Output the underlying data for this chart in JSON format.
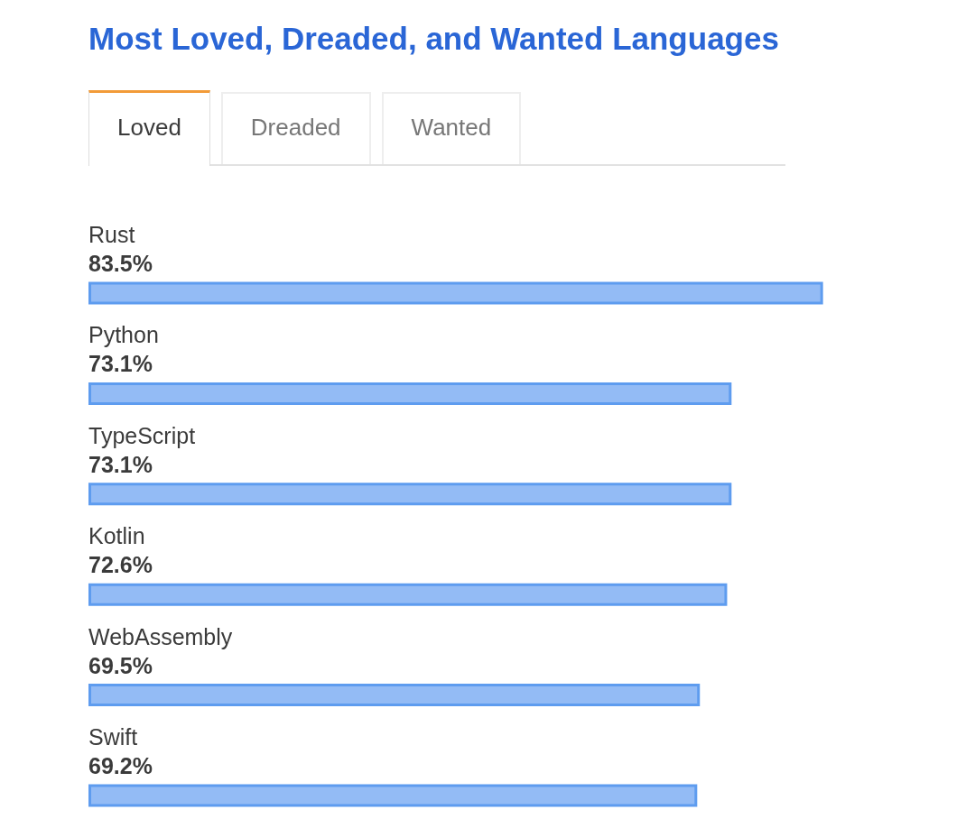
{
  "chart_data": {
    "type": "bar",
    "title": "Most Loved, Dreaded, and Wanted Languages",
    "annotations": [
      "Loved",
      "Dreaded",
      "Wanted"
    ],
    "categories": [
      "Rust",
      "Python",
      "TypeScript",
      "Kotlin",
      "WebAssembly",
      "Swift"
    ],
    "values": [
      83.5,
      73.1,
      73.1,
      72.6,
      69.5,
      69.2
    ],
    "value_labels": [
      "83.5%",
      "73.1%",
      "73.1%",
      "72.6%",
      "69.5%",
      "69.2%"
    ],
    "color": "#93bbf5",
    "orientation": "horizontal",
    "tick_labels": "y"
  }
}
